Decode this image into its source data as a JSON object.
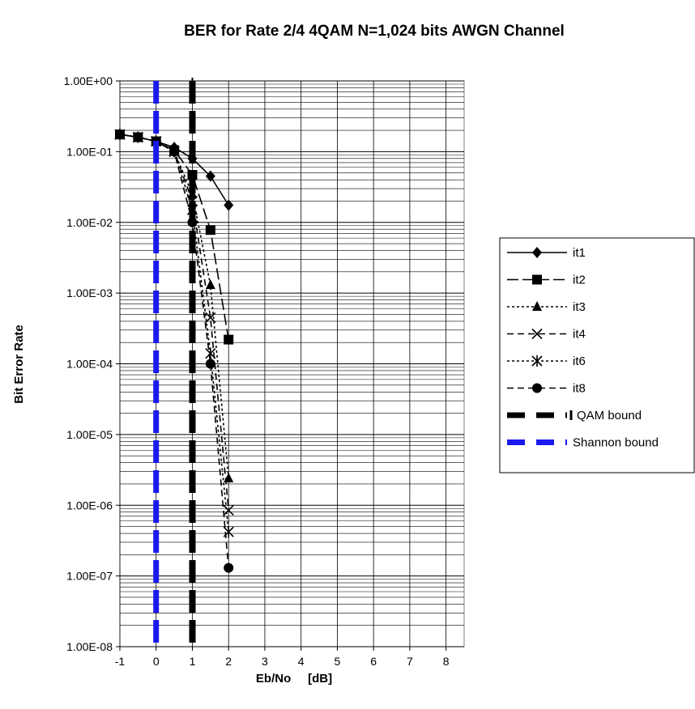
{
  "chart_data": {
    "type": "line",
    "title": "BER for Rate 2/4 4QAM N=1,024 bits  AWGN Channel",
    "xlabel": "Eb/No     [dB]",
    "ylabel": "Bit Error Rate",
    "x_scale": "linear",
    "y_scale": "log",
    "xlim": [
      -1,
      8.5
    ],
    "ylim": [
      1e-08,
      1
    ],
    "x_ticks": [
      "-1",
      "0",
      "1",
      "2",
      "3",
      "4",
      "5",
      "6",
      "7",
      "8"
    ],
    "x_tick_values": [
      -1,
      0,
      1,
      2,
      3,
      4,
      5,
      6,
      7,
      8
    ],
    "y_ticks": [
      "1.00E+00",
      "1.00E-01",
      "1.00E-02",
      "1.00E-03",
      "1.00E-04",
      "1.00E-05",
      "1.00E-06",
      "1.00E-07",
      "1.00E-08"
    ],
    "y_tick_values": [
      1,
      0.1,
      0.01,
      0.001,
      0.0001,
      1e-05,
      1e-06,
      1e-07,
      1e-08
    ],
    "grid": true,
    "legend_position": "right",
    "series": [
      {
        "name": "it1",
        "marker": "diamond",
        "dash": "solid",
        "color": "#000000",
        "points": [
          [
            -1,
            0.175
          ],
          [
            -0.5,
            0.16
          ],
          [
            0,
            0.14
          ],
          [
            0.5,
            0.115
          ],
          [
            1,
            0.08
          ],
          [
            1.5,
            0.045
          ],
          [
            2,
            0.0175
          ]
        ]
      },
      {
        "name": "it2",
        "marker": "square",
        "dash": "longdash",
        "color": "#000000",
        "points": [
          [
            -1,
            0.175
          ],
          [
            -0.5,
            0.16
          ],
          [
            0,
            0.14
          ],
          [
            0.5,
            0.105
          ],
          [
            1,
            0.047
          ],
          [
            1.5,
            0.0078
          ],
          [
            2,
            0.00022
          ]
        ]
      },
      {
        "name": "it3",
        "marker": "triangle",
        "dash": "dotted",
        "color": "#000000",
        "points": [
          [
            -1,
            0.175
          ],
          [
            -0.5,
            0.16
          ],
          [
            0,
            0.14
          ],
          [
            0.5,
            0.1
          ],
          [
            1,
            0.025
          ],
          [
            1.5,
            0.0013
          ],
          [
            2,
            2.4e-06
          ]
        ]
      },
      {
        "name": "it4",
        "marker": "x",
        "dash": "dashed",
        "color": "#000000",
        "points": [
          [
            -1,
            0.175
          ],
          [
            -0.5,
            0.16
          ],
          [
            0,
            0.14
          ],
          [
            0.5,
            0.1
          ],
          [
            1,
            0.02
          ],
          [
            1.5,
            0.00045
          ],
          [
            2,
            8.5e-07
          ]
        ]
      },
      {
        "name": "it6",
        "marker": "asterisk",
        "dash": "dotted",
        "color": "#000000",
        "points": [
          [
            -1,
            0.175
          ],
          [
            -0.5,
            0.16
          ],
          [
            0,
            0.14
          ],
          [
            0.5,
            0.1
          ],
          [
            1,
            0.015
          ],
          [
            1.5,
            0.00014
          ],
          [
            2,
            4.2e-07
          ]
        ]
      },
      {
        "name": "it8",
        "marker": "circle",
        "dash": "dashed",
        "color": "#000000",
        "points": [
          [
            -1,
            0.175
          ],
          [
            -0.5,
            0.16
          ],
          [
            0,
            0.14
          ],
          [
            0.5,
            0.1
          ],
          [
            1,
            0.01
          ],
          [
            1.5,
            0.0001
          ],
          [
            2,
            1.3e-07
          ]
        ]
      },
      {
        "name": "QAM bound",
        "marker": "none",
        "dash": "thick-dashed",
        "color": "#000000",
        "points": [
          [
            1,
            1
          ],
          [
            1,
            1e-08
          ]
        ]
      },
      {
        "name": "Shannon bound",
        "marker": "none",
        "dash": "thick-dashed",
        "color": "#1a1aee",
        "points": [
          [
            0,
            1
          ],
          [
            0,
            1e-08
          ]
        ]
      }
    ]
  }
}
